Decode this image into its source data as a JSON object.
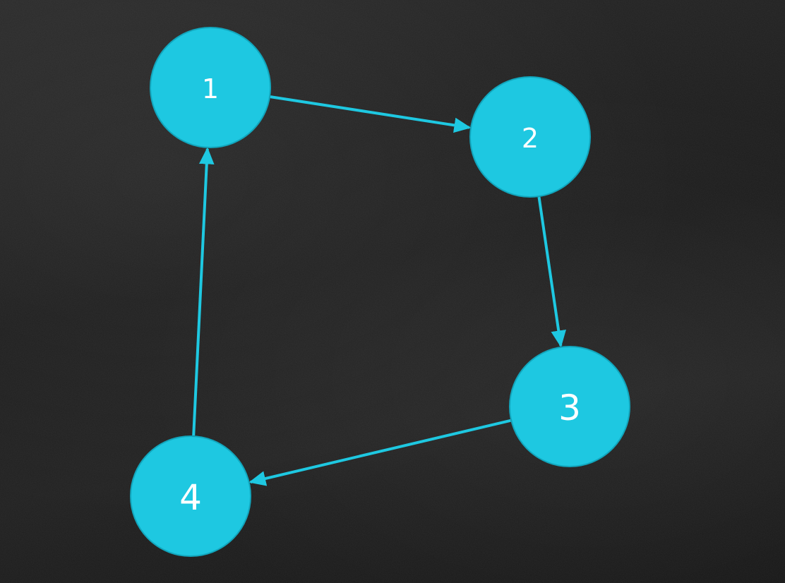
{
  "diagram": {
    "type": "directed-cycle-graph",
    "colors": {
      "background": "#1d1d1d",
      "node_fill": "#1ec8e1",
      "node_stroke": "#12a6bd",
      "edge": "#1ec8e1",
      "label": "#ffffff"
    },
    "nodes": [
      {
        "id": "1",
        "label": "1"
      },
      {
        "id": "2",
        "label": "2"
      },
      {
        "id": "3",
        "label": "3"
      },
      {
        "id": "4",
        "label": "4"
      }
    ],
    "edges": [
      {
        "from": "1",
        "to": "2"
      },
      {
        "from": "2",
        "to": "3"
      },
      {
        "from": "3",
        "to": "4"
      },
      {
        "from": "4",
        "to": "1"
      }
    ]
  }
}
